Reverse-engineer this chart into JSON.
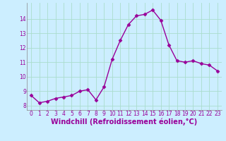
{
  "x": [
    0,
    1,
    2,
    3,
    4,
    5,
    6,
    7,
    8,
    9,
    10,
    11,
    12,
    13,
    14,
    15,
    16,
    17,
    18,
    19,
    20,
    21,
    22,
    23
  ],
  "y": [
    8.7,
    8.2,
    8.3,
    8.5,
    8.6,
    8.7,
    9.0,
    9.1,
    8.4,
    9.3,
    11.2,
    12.5,
    13.6,
    14.2,
    14.3,
    14.6,
    13.9,
    12.2,
    11.1,
    11.0,
    11.1,
    10.9,
    10.8,
    10.4
  ],
  "line_color": "#990099",
  "marker": "D",
  "marker_size": 2.5,
  "bg_color": "#cceeff",
  "grid_color": "#aaddcc",
  "xlabel": "Windchill (Refroidissement éolien,°C)",
  "xlabel_color": "#990099",
  "tick_color": "#990099",
  "ylim": [
    7.7,
    15.1
  ],
  "xlim": [
    -0.5,
    23.5
  ],
  "yticks": [
    8,
    9,
    10,
    11,
    12,
    13,
    14
  ],
  "xticks": [
    0,
    1,
    2,
    3,
    4,
    5,
    6,
    7,
    8,
    9,
    10,
    11,
    12,
    13,
    14,
    15,
    16,
    17,
    18,
    19,
    20,
    21,
    22,
    23
  ],
  "xtick_labels": [
    "0",
    "1",
    "2",
    "3",
    "4",
    "5",
    "6",
    "7",
    "8",
    "9",
    "10",
    "11",
    "12",
    "13",
    "14",
    "15",
    "16",
    "17",
    "18",
    "19",
    "20",
    "21",
    "22",
    "23"
  ],
  "tick_fontsize": 5.5,
  "xlabel_fontsize": 7.0,
  "linewidth": 1.0
}
